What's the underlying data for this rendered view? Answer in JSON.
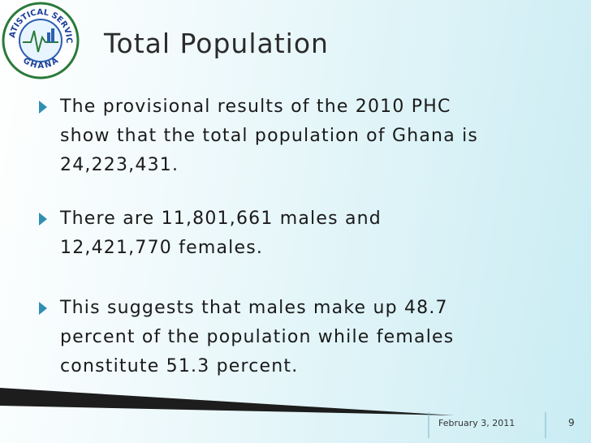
{
  "logo": {
    "top_text": "STATISTICAL SERVICE",
    "bottom_text": "GHANA"
  },
  "title": "Total Population",
  "bullets": [
    [
      "The provisional results of the 2010 PHC",
      "show that the total population of Ghana is",
      "24,223,431."
    ],
    [
      "There are 11,801,661 males and",
      "12,421,770 females."
    ],
    [
      "This suggests that males make up 48.7",
      "percent of the population while females",
      "constitute 51.3 percent."
    ]
  ],
  "footer": {
    "date": "February 3, 2011",
    "page": "9"
  }
}
